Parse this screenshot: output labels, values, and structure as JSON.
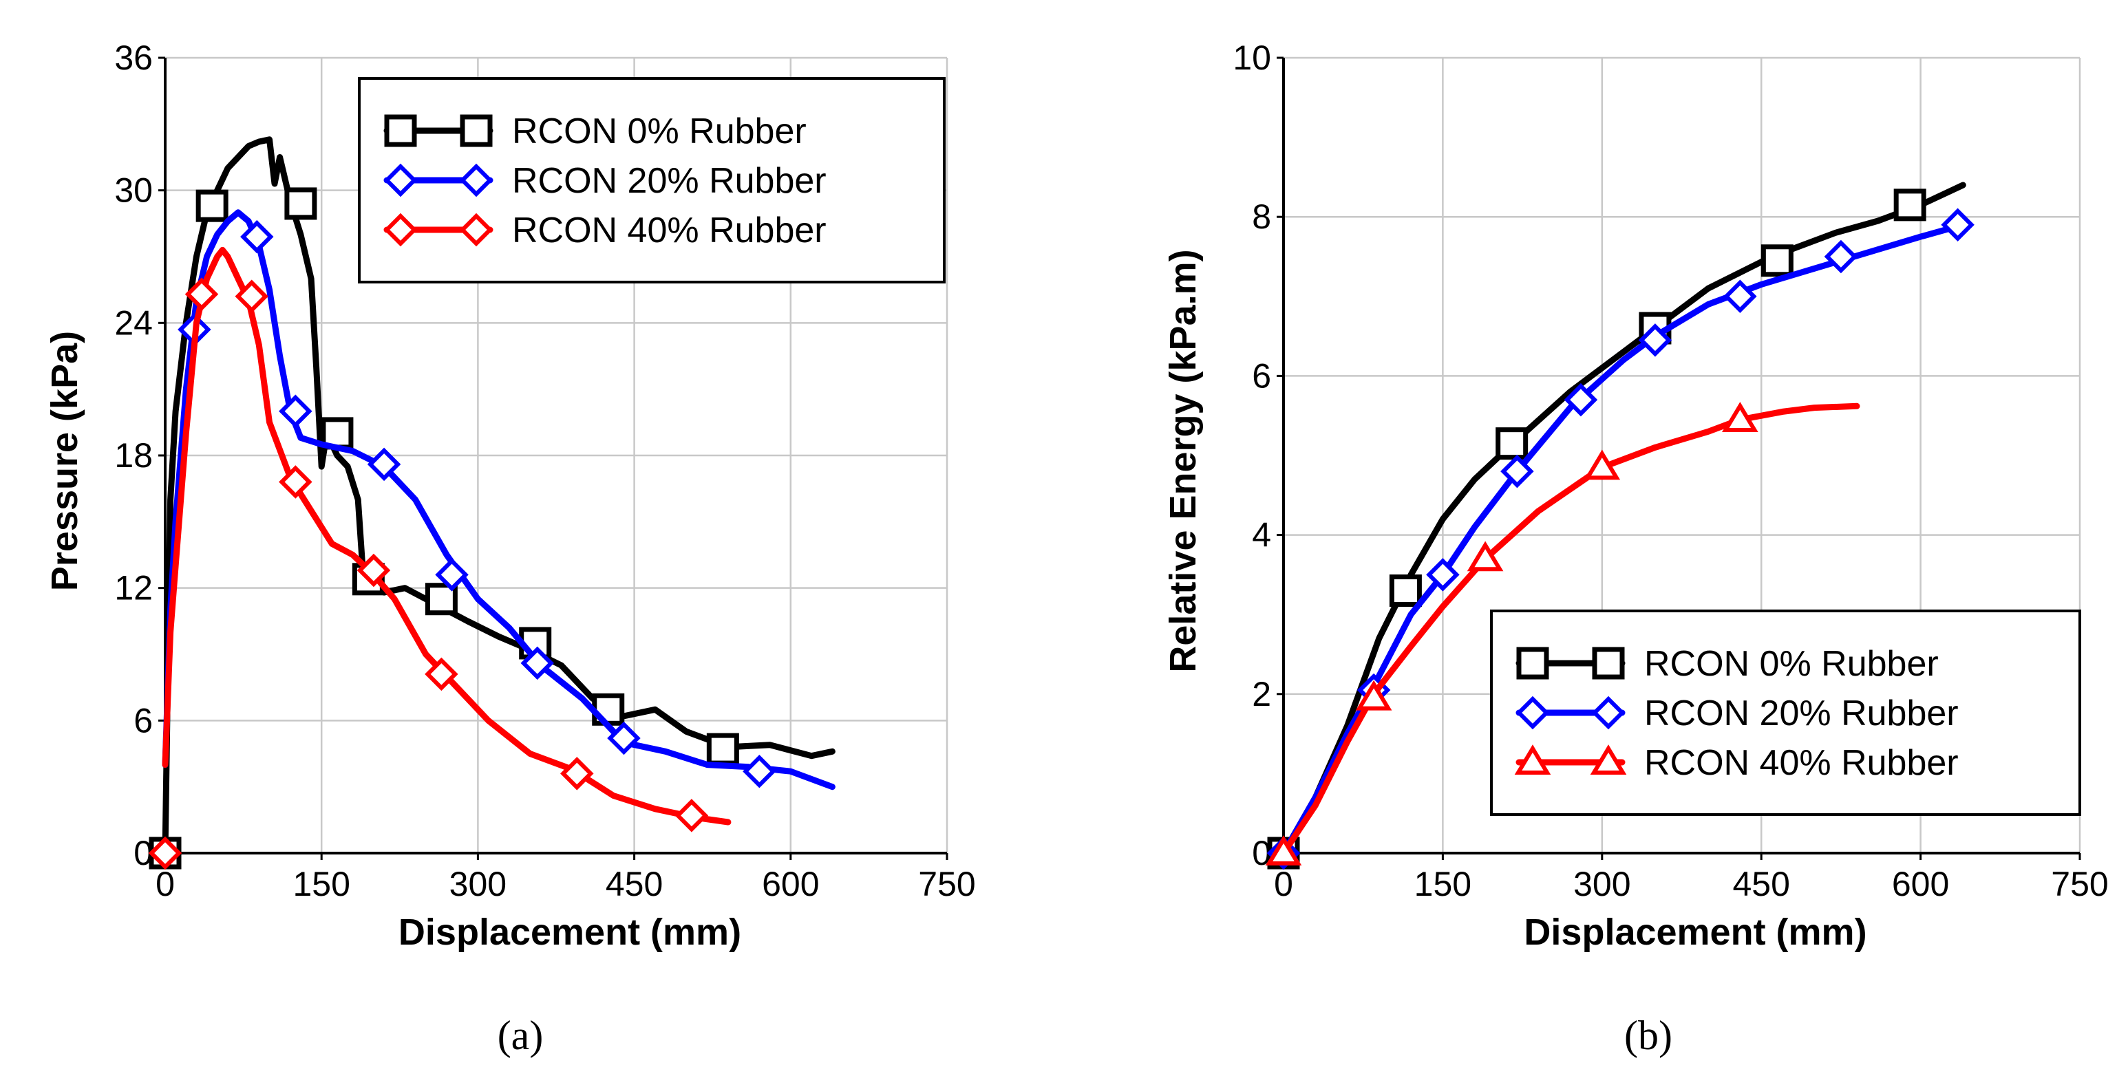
{
  "chart_data": [
    {
      "type": "line",
      "panel_label": "(a)",
      "xlabel": "Displacement (mm)",
      "ylabel": "Pressure (kPa)",
      "xlim": [
        0,
        750
      ],
      "ylim": [
        0,
        36
      ],
      "xticks": [
        0,
        150,
        300,
        450,
        600,
        750
      ],
      "yticks": [
        0,
        6,
        12,
        18,
        24,
        30,
        36
      ],
      "grid": true,
      "legend_position": "top-right",
      "series": [
        {
          "name": "RCON 0% Rubber",
          "color": "#000000",
          "marker": "square",
          "x": [
            0,
            5,
            10,
            15,
            20,
            30,
            40,
            50,
            60,
            70,
            80,
            90,
            100,
            105,
            110,
            115,
            120,
            130,
            140,
            145,
            150,
            155,
            165,
            175,
            185,
            190,
            195,
            200,
            210,
            230,
            250,
            270,
            290,
            320,
            350,
            380,
            410,
            440,
            470,
            500,
            540,
            580,
            620,
            640
          ],
          "y": [
            0,
            16,
            20,
            22,
            24,
            27,
            29,
            30,
            31,
            31.5,
            32,
            32.2,
            32.3,
            30.3,
            31.5,
            30.5,
            29.5,
            28,
            26,
            22,
            17.5,
            19,
            18,
            17.5,
            16,
            12.5,
            12.3,
            12,
            11.8,
            12,
            11.5,
            11,
            10.5,
            9.8,
            9.2,
            8.5,
            7,
            6.2,
            6.5,
            5.5,
            4.8,
            4.9,
            4.4,
            4.6
          ],
          "markers": [
            [
              0,
              0
            ],
            [
              45,
              29.3
            ],
            [
              130,
              29.4
            ],
            [
              165,
              19
            ],
            [
              195,
              12.4
            ],
            [
              265,
              11.5
            ],
            [
              355,
              9.5
            ],
            [
              425,
              6.5
            ],
            [
              535,
              4.7
            ]
          ]
        },
        {
          "name": "RCON 20% Rubber",
          "color": "#0000ff",
          "marker": "diamond",
          "x": [
            0,
            5,
            10,
            20,
            30,
            40,
            50,
            60,
            70,
            80,
            90,
            100,
            110,
            120,
            130,
            150,
            180,
            210,
            240,
            270,
            300,
            330,
            360,
            400,
            440,
            480,
            520,
            560,
            600,
            640
          ],
          "y": [
            4,
            11,
            15,
            21,
            25,
            27,
            28,
            28.6,
            29,
            28.6,
            27.5,
            25.5,
            22.5,
            20,
            18.8,
            18.5,
            18.2,
            17.5,
            16,
            13.5,
            11.5,
            10.2,
            8.5,
            7,
            5,
            4.6,
            4.0,
            3.9,
            3.7,
            3.0
          ],
          "markers": [
            [
              28,
              23.7
            ],
            [
              88,
              27.9
            ],
            [
              125,
              20
            ],
            [
              210,
              17.6
            ],
            [
              275,
              12.6
            ],
            [
              357,
              8.6
            ],
            [
              440,
              5.2
            ],
            [
              570,
              3.7
            ]
          ]
        },
        {
          "name": "RCON 40% Rubber",
          "color": "#ff0000",
          "marker": "diamond",
          "x": [
            0,
            5,
            10,
            20,
            30,
            40,
            50,
            55,
            60,
            70,
            80,
            90,
            100,
            120,
            140,
            160,
            180,
            200,
            220,
            250,
            280,
            310,
            350,
            390,
            430,
            470,
            510,
            540
          ],
          "y": [
            4,
            10,
            13,
            19,
            24,
            26,
            27,
            27.3,
            27,
            26,
            25,
            23,
            19.5,
            17,
            15.5,
            14,
            13.5,
            12.6,
            11.5,
            9,
            7.5,
            6,
            4.5,
            3.8,
            2.6,
            2.0,
            1.6,
            1.4
          ],
          "markers": [
            [
              0,
              0
            ],
            [
              35,
              25.3
            ],
            [
              83,
              25.2
            ],
            [
              125,
              16.8
            ],
            [
              200,
              12.8
            ],
            [
              265,
              8.1
            ],
            [
              395,
              3.6
            ],
            [
              505,
              1.7
            ]
          ]
        }
      ]
    },
    {
      "type": "line",
      "panel_label": "(b)",
      "xlabel": "Displacement (mm)",
      "ylabel": "Relative Energy (kPa.m)",
      "xlim": [
        0,
        750
      ],
      "ylim": [
        0,
        10
      ],
      "xticks": [
        0,
        150,
        300,
        450,
        600,
        750
      ],
      "yticks": [
        0,
        2,
        4,
        6,
        8,
        10
      ],
      "grid": true,
      "legend_position": "bottom-right",
      "series": [
        {
          "name": "RCON 0% Rubber",
          "color": "#000000",
          "marker": "square",
          "x": [
            0,
            30,
            60,
            90,
            120,
            150,
            180,
            220,
            270,
            320,
            350,
            400,
            460,
            520,
            560,
            600,
            640
          ],
          "y": [
            0,
            0.7,
            1.6,
            2.7,
            3.5,
            4.2,
            4.7,
            5.2,
            5.8,
            6.3,
            6.6,
            7.1,
            7.5,
            7.8,
            7.95,
            8.15,
            8.4
          ],
          "markers": [
            [
              0,
              0
            ],
            [
              115,
              3.3
            ],
            [
              215,
              5.15
            ],
            [
              350,
              6.6
            ],
            [
              465,
              7.45
            ],
            [
              590,
              8.15
            ]
          ]
        },
        {
          "name": "RCON 20% Rubber",
          "color": "#0000ff",
          "marker": "diamond",
          "x": [
            0,
            30,
            60,
            85,
            120,
            150,
            180,
            220,
            270,
            320,
            350,
            400,
            450,
            500,
            550,
            600,
            640
          ],
          "y": [
            0,
            0.7,
            1.5,
            2.1,
            3.0,
            3.5,
            4.1,
            4.8,
            5.6,
            6.2,
            6.5,
            6.9,
            7.15,
            7.35,
            7.55,
            7.75,
            7.9
          ],
          "markers": [
            [
              0,
              0
            ],
            [
              85,
              2.05
            ],
            [
              150,
              3.5
            ],
            [
              220,
              4.8
            ],
            [
              280,
              5.7
            ],
            [
              350,
              6.45
            ],
            [
              430,
              7.0
            ],
            [
              525,
              7.5
            ],
            [
              635,
              7.9
            ]
          ]
        },
        {
          "name": "RCON 40% Rubber",
          "color": "#ff0000",
          "marker": "triangle",
          "x": [
            0,
            30,
            60,
            85,
            120,
            150,
            190,
            240,
            300,
            350,
            400,
            430,
            470,
            500,
            540
          ],
          "y": [
            0,
            0.6,
            1.4,
            2.0,
            2.6,
            3.1,
            3.7,
            4.3,
            4.85,
            5.1,
            5.3,
            5.45,
            5.55,
            5.6,
            5.62
          ],
          "markers": [
            [
              0,
              0
            ],
            [
              85,
              1.95
            ],
            [
              190,
              3.7
            ],
            [
              300,
              4.85
            ],
            [
              430,
              5.45
            ]
          ]
        }
      ]
    }
  ]
}
